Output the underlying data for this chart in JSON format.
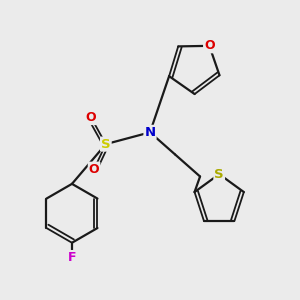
{
  "bg_color": "#ebebeb",
  "atom_colors": {
    "C": "#000000",
    "N": "#0000cc",
    "O": "#dd0000",
    "S_sul": "#cccc00",
    "S_thi": "#aaaa00",
    "F": "#cc00cc"
  },
  "bond_color": "#1a1a1a",
  "lw": 1.6,
  "lw2": 1.3
}
